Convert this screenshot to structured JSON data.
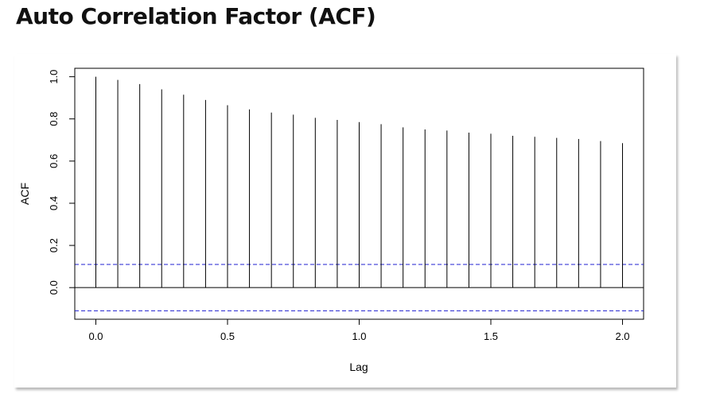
{
  "page": {
    "title": "Auto Correlation Factor (ACF)"
  },
  "chart_data": {
    "type": "bar",
    "title": "",
    "xlabel": "Lag",
    "ylabel": "ACF",
    "xlim": [
      -0.08,
      2.08
    ],
    "ylim": [
      -0.15,
      1.04
    ],
    "x_ticks": [
      0.0,
      0.5,
      1.0,
      1.5,
      2.0
    ],
    "x_tick_labels": [
      "0.0",
      "0.5",
      "1.0",
      "1.5",
      "2.0"
    ],
    "y_ticks": [
      0.0,
      0.2,
      0.4,
      0.6,
      0.8,
      1.0
    ],
    "y_tick_labels": [
      "0.0",
      "0.2",
      "0.4",
      "0.6",
      "0.8",
      "1.0"
    ],
    "lags": [
      0.0,
      0.0833,
      0.1667,
      0.25,
      0.3333,
      0.4167,
      0.5,
      0.5833,
      0.6667,
      0.75,
      0.8333,
      0.9167,
      1.0,
      1.0833,
      1.1667,
      1.25,
      1.3333,
      1.4167,
      1.5,
      1.5833,
      1.6667,
      1.75,
      1.8333,
      1.9167,
      2.0
    ],
    "values": [
      1.0,
      0.985,
      0.965,
      0.94,
      0.915,
      0.89,
      0.865,
      0.845,
      0.83,
      0.82,
      0.805,
      0.795,
      0.785,
      0.775,
      0.76,
      0.75,
      0.745,
      0.735,
      0.73,
      0.72,
      0.715,
      0.71,
      0.705,
      0.695,
      0.685
    ],
    "confidence_upper": 0.11,
    "confidence_lower": -0.11,
    "confidence_color": "#1f1fd0",
    "bar_color": "#000000",
    "grid": false
  }
}
